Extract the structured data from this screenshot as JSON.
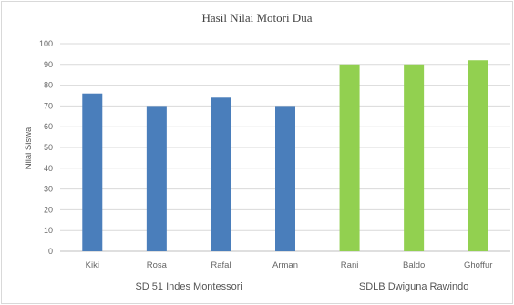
{
  "chart_data": {
    "type": "bar",
    "title": "Hasil  Nilai Motori Dua",
    "ylabel": "Nilai Siswa",
    "xlabel": "",
    "ylim": [
      0,
      100
    ],
    "yticks": [
      "0",
      "10",
      "20",
      "30",
      "40",
      "50",
      "60",
      "70",
      "80",
      "90",
      "100"
    ],
    "grid": true,
    "categories": [
      "Kiki",
      "Rosa",
      "Rafal",
      "Arman",
      "Rani",
      "Baldo",
      "Ghoffur"
    ],
    "values": [
      76,
      70,
      74,
      70,
      90,
      90,
      92
    ],
    "groups": [
      {
        "label": "SD 51 Indes Montessori",
        "members": [
          "Kiki",
          "Rosa",
          "Rafal",
          "Arman"
        ],
        "color": "#4a7ebb"
      },
      {
        "label": "SDLB Dwiguna Rawindo",
        "members": [
          "Rani",
          "Baldo",
          "Ghoffur"
        ],
        "color": "#92d050"
      }
    ]
  }
}
